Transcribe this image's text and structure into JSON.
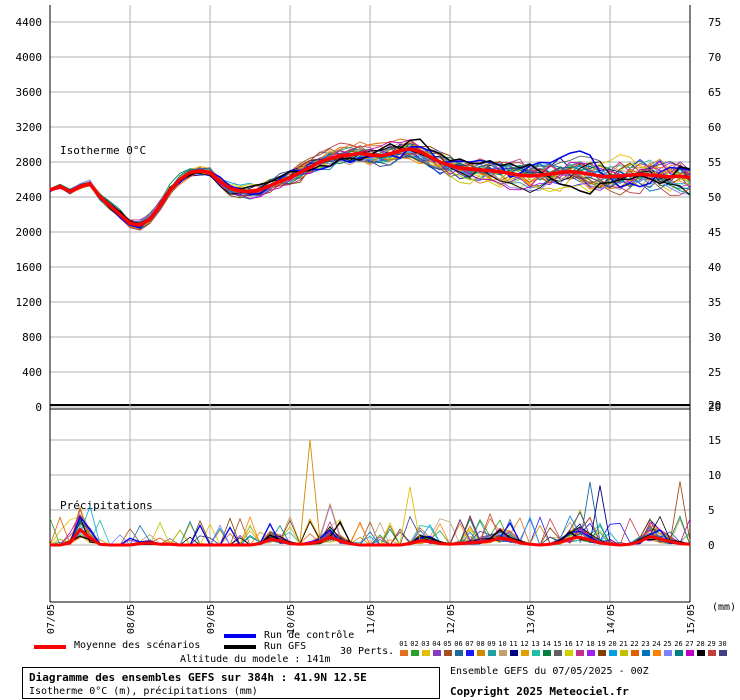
{
  "chart_data": {
    "type": "line",
    "top_panel": {
      "label": "Isotherme 0°C",
      "y_left_ticks": [
        0,
        400,
        800,
        1200,
        1600,
        2000,
        2400,
        2800,
        3200,
        3600,
        4000,
        4400
      ],
      "y_right_ticks": [
        20,
        25,
        30,
        35,
        40,
        45,
        50,
        55,
        60,
        65,
        70,
        75
      ],
      "ylim": [
        0,
        4600
      ],
      "mean_series": {
        "name": "Moyenne des scénarios",
        "values": [
          2480,
          2520,
          2460,
          2520,
          2550,
          2400,
          2300,
          2200,
          2100,
          2080,
          2150,
          2300,
          2480,
          2600,
          2680,
          2700,
          2680,
          2580,
          2500,
          2470,
          2460,
          2480,
          2530,
          2580,
          2620,
          2680,
          2740,
          2800,
          2840,
          2870,
          2880,
          2900,
          2880,
          2870,
          2890,
          2930,
          2950,
          2920,
          2860,
          2800,
          2760,
          2730,
          2720,
          2710,
          2700,
          2690,
          2670,
          2650,
          2640,
          2650,
          2660,
          2680,
          2690,
          2680,
          2660,
          2640,
          2630,
          2640,
          2650,
          2660,
          2650,
          2640,
          2630,
          2640,
          2620
        ]
      },
      "control_color": "#0000ee",
      "gfs_color": "#000000",
      "mean_color": "#ff0000"
    },
    "bottom_panel": {
      "label": "Précipitations",
      "y_right_ticks": [
        0,
        5,
        10,
        15,
        20
      ],
      "unit": "(mm)",
      "mean_series": {
        "name": "Moyenne des scénarios",
        "values": [
          0,
          0,
          0.3,
          2.2,
          1.0,
          0.1,
          0,
          0,
          0,
          0.2,
          0.3,
          0.1,
          0.1,
          0,
          0,
          0,
          0,
          0,
          0,
          0,
          0,
          0.2,
          0.8,
          0.6,
          0.2,
          0.1,
          0.2,
          0.5,
          1.1,
          0.6,
          0.2,
          0,
          0,
          0,
          0,
          0,
          0.2,
          0.6,
          0.5,
          0.2,
          0.1,
          0.2,
          0.3,
          0.4,
          0.6,
          1.0,
          0.8,
          0.3,
          0.1,
          0,
          0.1,
          0.4,
          0.9,
          1.1,
          0.7,
          0.3,
          0.1,
          0,
          0.1,
          0.5,
          1.2,
          0.9,
          0.5,
          0.2,
          0.1
        ]
      }
    },
    "x_ticks": [
      "07/05",
      "08/05",
      "09/05",
      "10/05",
      "11/05",
      "12/05",
      "13/05",
      "14/05",
      "15/05"
    ]
  },
  "legend": {
    "mean_label": "Moyenne des scénarios",
    "control_label": "Run de contrôle",
    "gfs_label": "Run GFS",
    "perts_label": "30 Perts.",
    "altitude_label": "Altitude du modele : 141m",
    "pert_numbers": [
      "01",
      "02",
      "03",
      "04",
      "05",
      "06",
      "07",
      "08",
      "09",
      "10",
      "11",
      "12",
      "13",
      "14",
      "15",
      "16",
      "17",
      "18",
      "19",
      "20",
      "21",
      "22",
      "23",
      "24",
      "25",
      "26",
      "27",
      "28",
      "29",
      "30"
    ],
    "pert_colors": [
      "#e07020",
      "#2aa02a",
      "#e0c000",
      "#8a3ac0",
      "#a05020",
      "#1a6aa0",
      "#1a1aff",
      "#d08a00",
      "#20a0a0",
      "#c0a070",
      "#000080",
      "#e0a000",
      "#20c0a0",
      "#008040",
      "#606060",
      "#d0d000",
      "#c03090",
      "#a020f0",
      "#804000",
      "#00a0e0",
      "#c0c000",
      "#e06000",
      "#0070c0",
      "#ff8000",
      "#8080ff",
      "#008080",
      "#c000c0",
      "#000000",
      "#c04040",
      "#404080"
    ]
  },
  "info": {
    "line1": "Diagramme des ensembles GEFS sur 384h : 41.9N 12.5E",
    "line2": "Isotherme 0°C (m), précipitations (mm)",
    "ensemble": "Ensemble GEFS du 07/05/2025 - 00Z",
    "copyright": "Copyright 2025 Meteociel.fr"
  }
}
